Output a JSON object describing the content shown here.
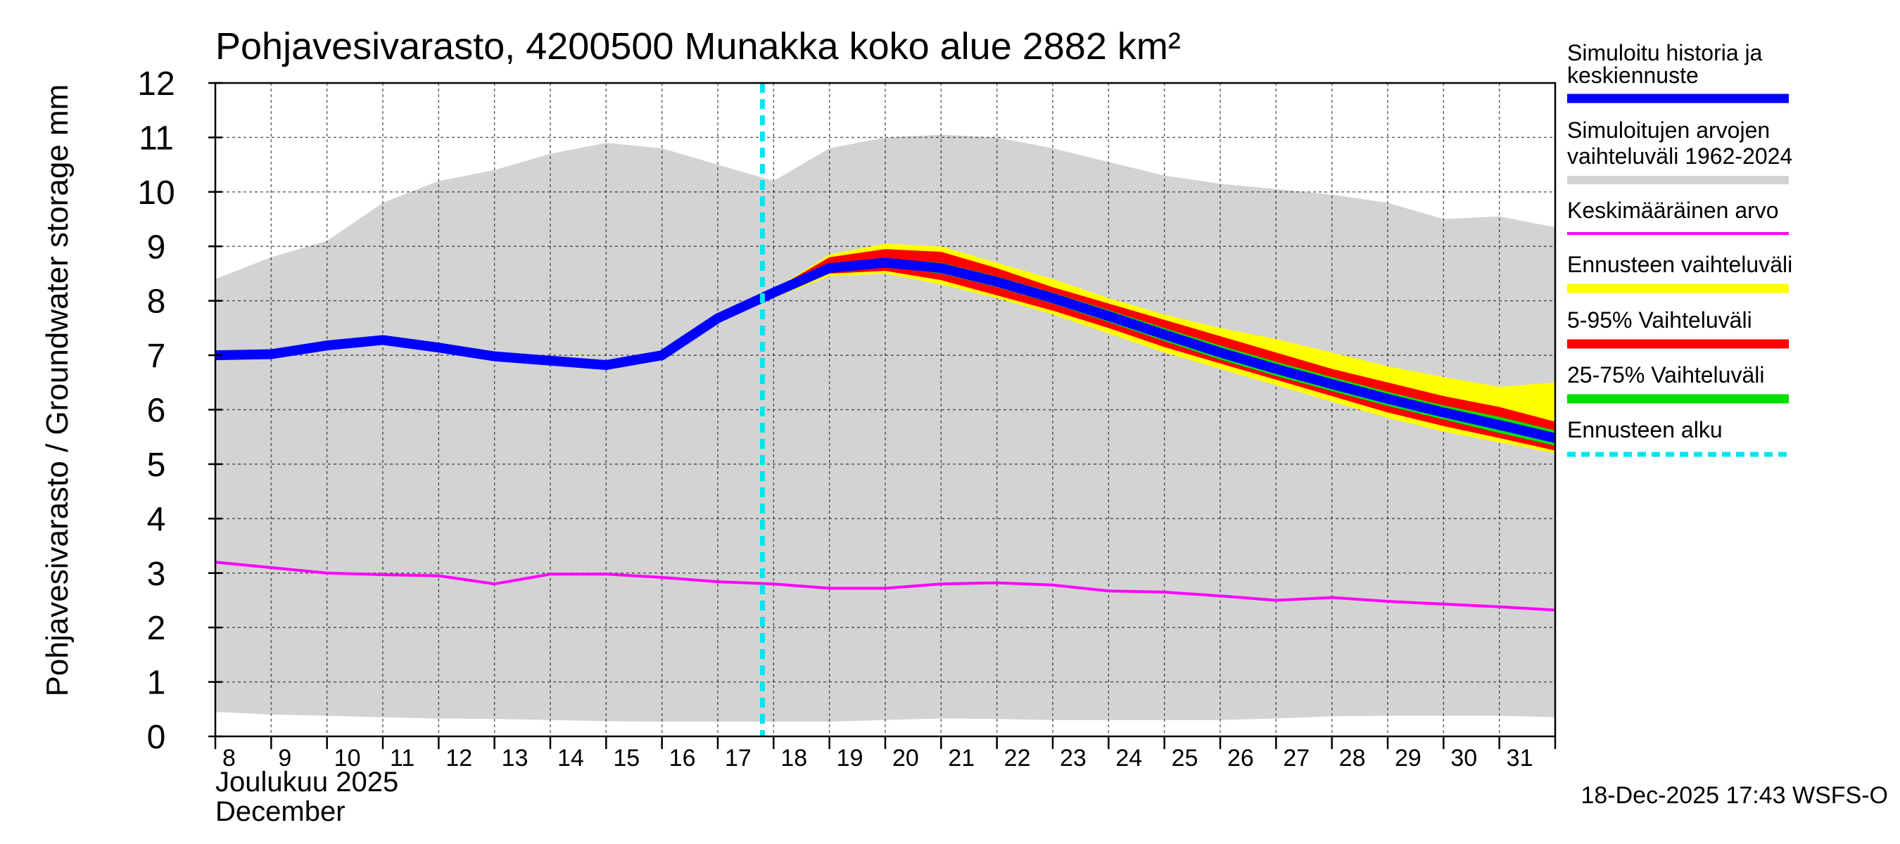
{
  "chart_data": {
    "type": "area",
    "title": "Pohjavesivarasto, 4200500 Munakka koko alue 2882 km²",
    "ylabel": "Pohjavesivarasto / Groundwater storage   mm",
    "xlabel_line1": "Joulukuu  2025",
    "xlabel_line2": "December",
    "ylim": [
      0,
      12
    ],
    "yticks": [
      "0",
      "1",
      "2",
      "3",
      "4",
      "5",
      "6",
      "7",
      "8",
      "9",
      "10",
      "11",
      "12"
    ],
    "xlim": [
      8,
      32
    ],
    "xtick_labels": [
      "8",
      "9",
      "10",
      "11",
      "12",
      "13",
      "14",
      "15",
      "16",
      "17",
      "18",
      "19",
      "20",
      "21",
      "22",
      "23",
      "24",
      "25",
      "26",
      "27",
      "28",
      "29",
      "30",
      "31"
    ],
    "forecast_start_x": 17.8,
    "x": [
      8,
      9,
      10,
      11,
      12,
      13,
      14,
      15,
      16,
      17,
      18,
      19,
      20,
      21,
      22,
      23,
      24,
      25,
      26,
      27,
      28,
      29,
      30,
      31,
      32
    ],
    "series": [
      {
        "name": "Simuloitujen arvojen vaihteluväli 1962-2024 (max)",
        "values": [
          8.4,
          8.8,
          9.1,
          9.8,
          10.2,
          10.4,
          10.7,
          10.9,
          10.8,
          10.5,
          10.2,
          10.8,
          11.0,
          11.05,
          11.0,
          10.8,
          10.55,
          10.3,
          10.15,
          10.05,
          9.95,
          9.8,
          9.5,
          9.55,
          9.35
        ]
      },
      {
        "name": "Simuloitujen arvojen vaihteluväli 1962-2024 (min)",
        "values": [
          0.45,
          0.4,
          0.38,
          0.35,
          0.33,
          0.32,
          0.3,
          0.28,
          0.27,
          0.27,
          0.27,
          0.27,
          0.3,
          0.33,
          0.32,
          0.3,
          0.3,
          0.3,
          0.3,
          0.33,
          0.37,
          0.38,
          0.38,
          0.38,
          0.35
        ]
      },
      {
        "name": "Keskimääräinen arvo",
        "values": [
          3.2,
          3.1,
          3.0,
          2.97,
          2.95,
          2.8,
          2.98,
          2.98,
          2.92,
          2.84,
          2.8,
          2.72,
          2.72,
          2.8,
          2.82,
          2.78,
          2.67,
          2.65,
          2.58,
          2.5,
          2.55,
          2.48,
          2.43,
          2.38,
          2.32
        ]
      },
      {
        "name": "Simuloitu historia ja keskiennuste",
        "values": [
          7.0,
          7.02,
          7.18,
          7.28,
          7.14,
          6.98,
          6.9,
          6.82,
          7.0,
          7.68,
          8.15,
          8.6,
          8.7,
          8.6,
          8.35,
          8.05,
          7.72,
          7.38,
          7.05,
          6.75,
          6.47,
          6.2,
          5.95,
          5.72,
          5.48
        ]
      },
      {
        "name": "Ennusteen vaihteluväli (yläraja)",
        "values": [
          null,
          null,
          null,
          null,
          null,
          null,
          null,
          null,
          null,
          null,
          8.2,
          8.85,
          9.05,
          9.0,
          8.7,
          8.4,
          8.05,
          7.75,
          7.5,
          7.3,
          7.05,
          6.8,
          6.6,
          6.42,
          6.5
        ]
      },
      {
        "name": "Ennusteen vaihteluväli (alaraja)",
        "values": [
          null,
          null,
          null,
          null,
          null,
          null,
          null,
          null,
          null,
          null,
          8.05,
          8.45,
          8.5,
          8.3,
          8.05,
          7.75,
          7.4,
          7.05,
          6.75,
          6.45,
          6.15,
          5.85,
          5.6,
          5.4,
          5.2
        ]
      },
      {
        "name": "5-95% Vaihteluväli (yläraja)",
        "values": [
          null,
          null,
          null,
          null,
          null,
          null,
          null,
          null,
          null,
          null,
          8.2,
          8.8,
          8.95,
          8.9,
          8.6,
          8.25,
          7.95,
          7.65,
          7.35,
          7.05,
          6.75,
          6.5,
          6.25,
          6.05,
          5.78
        ]
      },
      {
        "name": "5-95% Vaihteluväli (alaraja)",
        "values": [
          null,
          null,
          null,
          null,
          null,
          null,
          null,
          null,
          null,
          null,
          8.1,
          8.5,
          8.55,
          8.38,
          8.1,
          7.82,
          7.5,
          7.15,
          6.85,
          6.55,
          6.25,
          5.95,
          5.7,
          5.48,
          5.25
        ]
      },
      {
        "name": "25-75% Vaihteluväli (yläraja)",
        "values": [
          null,
          null,
          null,
          null,
          null,
          null,
          null,
          null,
          null,
          null,
          8.17,
          8.66,
          8.78,
          8.7,
          8.45,
          8.15,
          7.83,
          7.5,
          7.18,
          6.88,
          6.6,
          6.33,
          6.08,
          5.87,
          5.62
        ]
      },
      {
        "name": "25-75% Vaihteluväli (alaraja)",
        "values": [
          null,
          null,
          null,
          null,
          null,
          null,
          null,
          null,
          null,
          null,
          8.13,
          8.54,
          8.62,
          8.5,
          8.25,
          7.95,
          7.61,
          7.26,
          6.92,
          6.62,
          6.34,
          6.07,
          5.82,
          5.57,
          5.34
        ]
      }
    ],
    "legend": [
      {
        "label_line1": "Simuloitu historia ja",
        "label_line2": "keskiennuste",
        "color": "#0000ff"
      },
      {
        "label_line1": "Simuloitujen arvojen",
        "label_line2": "vaihteluväli 1962-2024",
        "color": "#d3d3d3"
      },
      {
        "label_line1": "Keskimääräinen arvo",
        "color": "#ff00ff"
      },
      {
        "label_line1": "Ennusteen vaihteluväli",
        "color": "#ffff00"
      },
      {
        "label_line1": "5-95% Vaihteluväli",
        "color": "#ff0000"
      },
      {
        "label_line1": "25-75% Vaihteluväli",
        "color": "#00e000"
      },
      {
        "label_line1": "Ennusteen alku",
        "color": "#00e5ee"
      }
    ],
    "legend_position": "right",
    "grid": true,
    "timestamp": "18-Dec-2025 17:43 WSFS-O"
  }
}
